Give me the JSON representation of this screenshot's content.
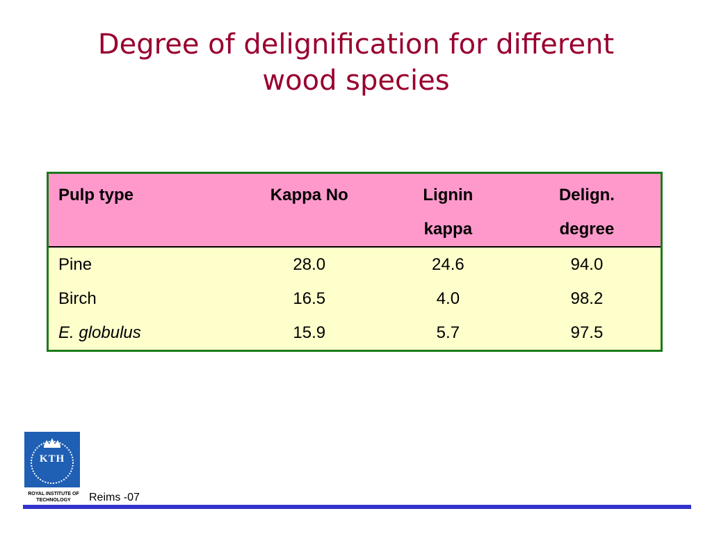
{
  "slide": {
    "title_line1": "Degree of delignification for different",
    "title_line2": "wood species"
  },
  "table": {
    "headers": [
      {
        "line1": "Pulp type",
        "line2": ""
      },
      {
        "line1": "Kappa No",
        "line2": ""
      },
      {
        "line1": "Lignin",
        "line2": "kappa"
      },
      {
        "line1": "Delign.",
        "line2": "degree"
      }
    ],
    "rows": [
      {
        "pulp_type": "Pine",
        "kappa_no": "28.0",
        "lignin_kappa": "24.6",
        "delign_degree": "94.0"
      },
      {
        "pulp_type": "Birch",
        "kappa_no": "16.5",
        "lignin_kappa": "4.0",
        "delign_degree": "98.2"
      },
      {
        "pulp_type": "E. globulus",
        "kappa_no": "15.9",
        "lignin_kappa": "5.7",
        "delign_degree": "97.5"
      }
    ]
  },
  "colors": {
    "title": "#99002e",
    "header_bg": "#ff99cc",
    "body_bg": "#ffffcc",
    "table_border": "#1a7a1a",
    "footer_line": "#3333cc",
    "logo_bg": "#1f5fb4"
  },
  "footer": {
    "logo_text": "KTH",
    "institution": "ROYAL INSTITUTE OF TECHNOLOGY",
    "label": "Reims -07"
  }
}
